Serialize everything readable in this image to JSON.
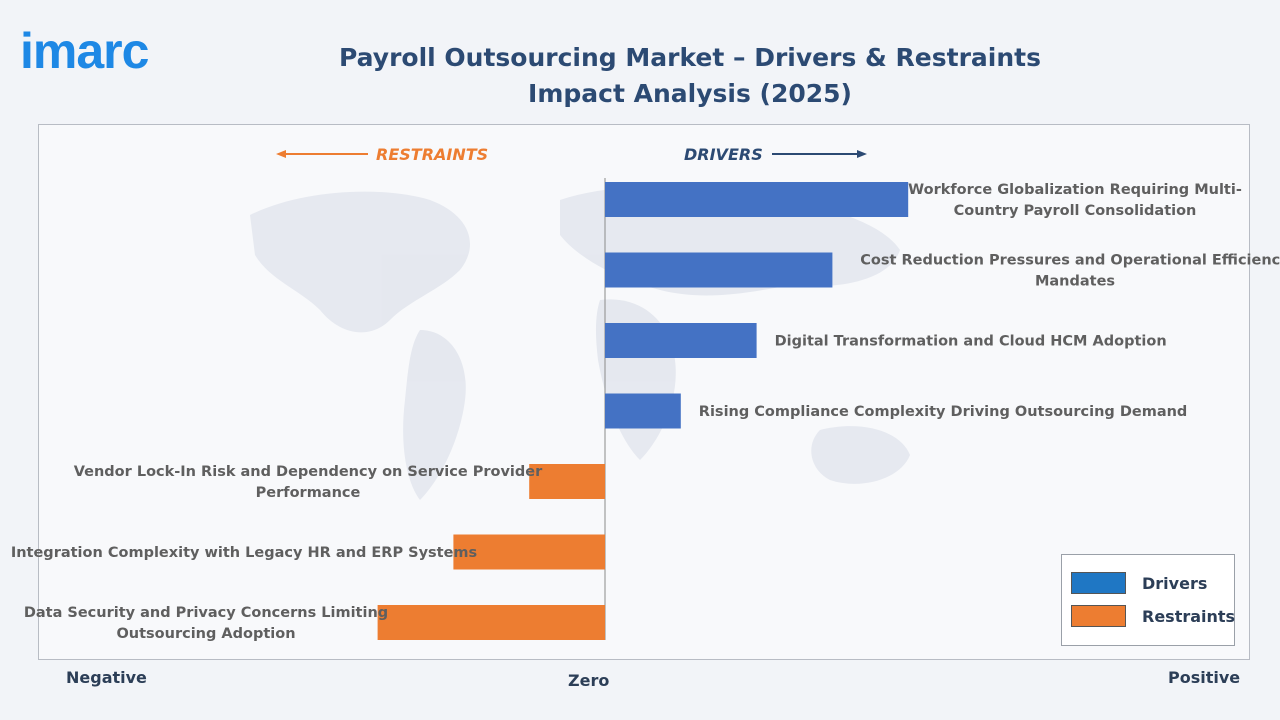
{
  "logo": {
    "text": "imarc"
  },
  "title": "Payroll Outsourcing Market – Drivers & Restraints Impact Analysis (2025)",
  "colors": {
    "drivers": "#4472c4",
    "restraints": "#ed7d31",
    "title": "#2c4a73",
    "logo": "#1e88e5"
  },
  "direction_labels": {
    "restraints": "RESTRAINTS",
    "drivers": "DRIVERS"
  },
  "axis_labels": {
    "negative": "Negative",
    "zero": "Zero",
    "positive": "Positive"
  },
  "legend": [
    {
      "label": "Drivers",
      "color": "#1f77c4"
    },
    {
      "label": "Restraints",
      "color": "#ed7d31"
    }
  ],
  "chart_data": {
    "type": "bar",
    "orientation": "horizontal",
    "title": "Payroll Outsourcing Market – Drivers & Restraints Impact Analysis (2025)",
    "xlabel": "",
    "ylabel": "",
    "xlim": [
      -7.5,
      8.5
    ],
    "grid": false,
    "legend_position": "bottom-right",
    "series": [
      {
        "name": "Drivers",
        "categories": [
          "Workforce Globalization Requiring Multi-Country Payroll Consolidation",
          "Cost Reduction Pressures and Operational Efficiency Mandates",
          "Digital Transformation and Cloud HCM Adoption",
          "Rising Compliance Complexity Driving Outsourcing Demand"
        ],
        "values": [
          4,
          3,
          2,
          1
        ]
      },
      {
        "name": "Restraints",
        "categories": [
          "Vendor Lock-In Risk and Dependency on Service Provider Performance",
          "Integration Complexity with Legacy HR and ERP Systems",
          "Data Security and Privacy Concerns Limiting Outsourcing Adoption"
        ],
        "values": [
          -1,
          -2,
          -3
        ]
      }
    ],
    "bar_labels": [
      [
        "Workforce Globalization Requiring Multi-",
        "Country Payroll Consolidation"
      ],
      [
        "Cost Reduction Pressures and Operational Efficiency",
        "Mandates"
      ],
      [
        "Digital Transformation and Cloud HCM Adoption"
      ],
      [
        "Rising Compliance Complexity Driving Outsourcing Demand"
      ],
      [
        "Vendor Lock-In Risk and Dependency on Service Provider",
        "Performance"
      ],
      [
        "Integration Complexity with Legacy HR and ERP Systems"
      ],
      [
        "Data Security and Privacy Concerns Limiting",
        "Outsourcing Adoption"
      ]
    ]
  }
}
